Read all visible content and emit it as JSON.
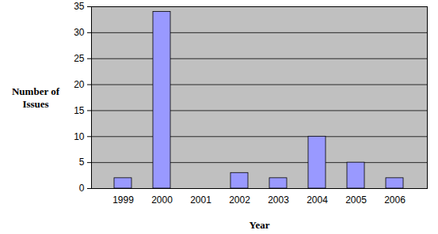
{
  "chart_data": {
    "type": "bar",
    "x_label": "Year",
    "y_label": "Number of Issues",
    "categories": [
      "1999",
      "2000",
      "2001",
      "2002",
      "2003",
      "2004",
      "2005",
      "2006"
    ],
    "values": [
      2,
      34,
      0,
      3,
      2,
      10,
      5,
      2
    ],
    "color": "#9999ff",
    "ylim": [
      0,
      35
    ],
    "yticks": [
      0,
      5,
      10,
      15,
      20,
      25,
      30,
      35
    ],
    "grid": true
  }
}
